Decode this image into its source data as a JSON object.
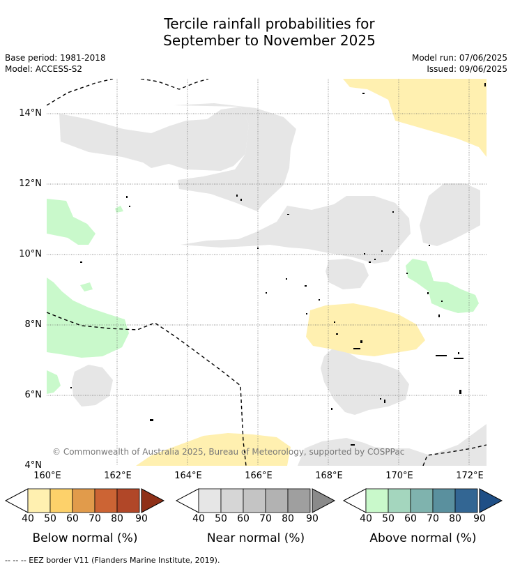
{
  "title_line1": "Tercile rainfall probabilities for",
  "title_line2": "September to November 2025",
  "base_period": "Base period: 1981-2018",
  "model": "Model: ACCESS-S2",
  "model_run": "Model run: 07/06/2025",
  "issued": "Issued: 09/06/2025",
  "copyright": "© Commonwealth of Australia 2025, Bureau of Meteorology, supported by COSPPac",
  "lat_labels": [
    "14°N",
    "12°N",
    "10°N",
    "8°N",
    "6°N",
    "4°N"
  ],
  "lon_labels": [
    "160°E",
    "162°E",
    "164°E",
    "166°E",
    "168°E",
    "170°E",
    "172°E"
  ],
  "legends": [
    {
      "title": "Below normal (%)",
      "ticks": [
        "40",
        "50",
        "60",
        "70",
        "80",
        "90"
      ],
      "colors": [
        "#fff0b0",
        "#fdd16a",
        "#e19b4b",
        "#cc6434",
        "#b14728",
        "#8f3018"
      ]
    },
    {
      "title": "Near normal (%)",
      "ticks": [
        "40",
        "50",
        "60",
        "70",
        "80",
        "90"
      ],
      "colors": [
        "#e6e6e6",
        "#d6d6d6",
        "#c4c4c4",
        "#b2b2b2",
        "#9f9f9f",
        "#8a8a8a"
      ]
    },
    {
      "title": "Above normal (%)",
      "ticks": [
        "40",
        "50",
        "60",
        "70",
        "80",
        "90"
      ],
      "colors": [
        "#c9f9cb",
        "#a4d6be",
        "#7fb3ae",
        "#5a909e",
        "#336693",
        "#1f4f86"
      ]
    }
  ],
  "footnote": "--  --  -- EEZ border V11 (Flanders Marine Institute, 2019)."
}
